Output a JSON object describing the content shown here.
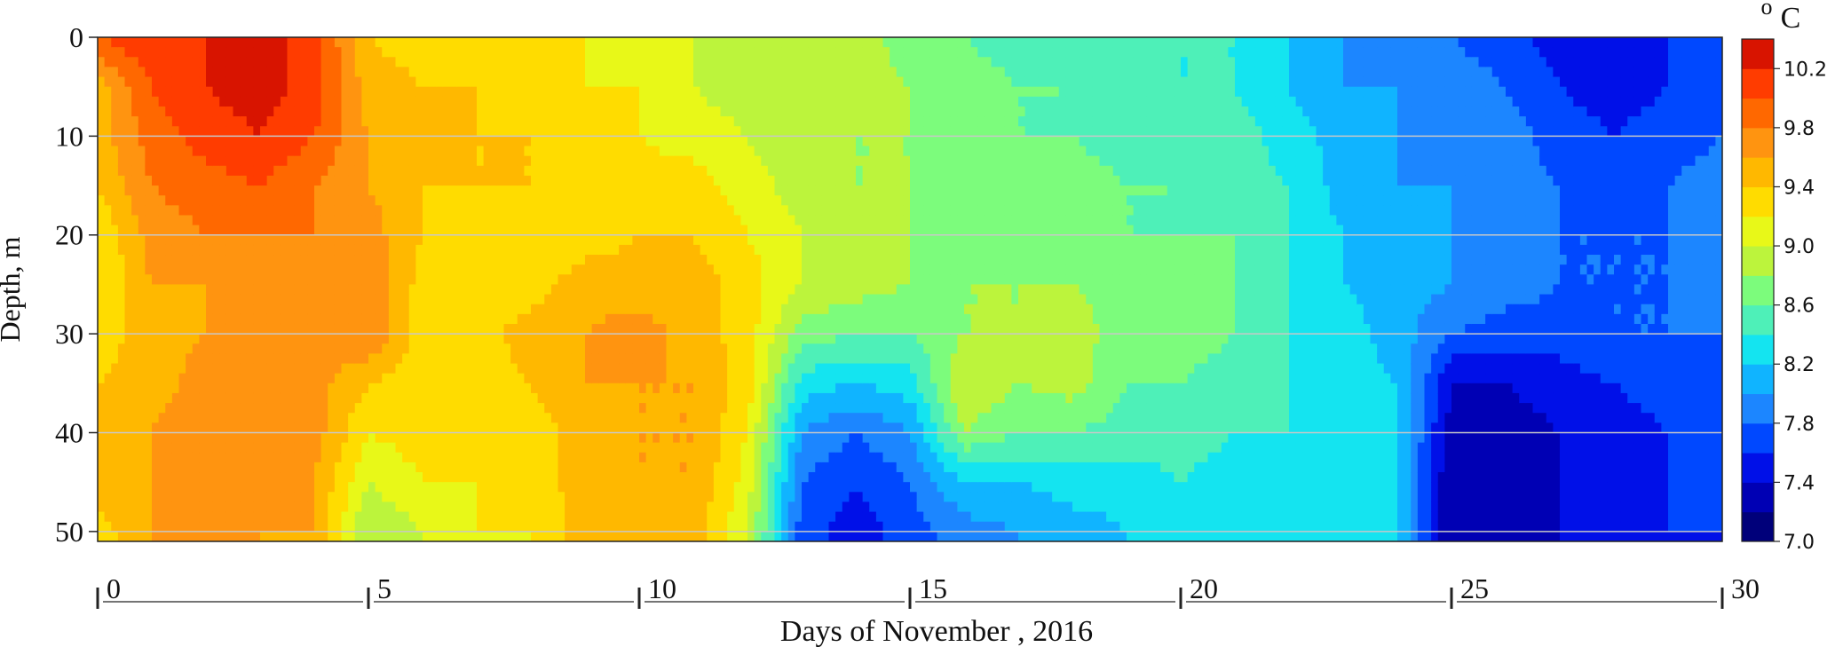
{
  "chart_data": {
    "type": "heatmap",
    "subtype": "filled-contour",
    "title": "",
    "xlabel": "Days of November , 2016",
    "ylabel": "Depth, m",
    "xlim": [
      0,
      30
    ],
    "ylim": [
      51,
      0
    ],
    "y_inverted": true,
    "x_ticks": [
      "0",
      "5",
      "10",
      "15",
      "20",
      "25",
      "30"
    ],
    "y_ticks": [
      "0",
      "10",
      "20",
      "30",
      "40",
      "50"
    ],
    "grid": "horizontal lines at depths 10, 20, 30, 40, 50",
    "colorbar": {
      "unit_sup": "o",
      "unit": "C",
      "min": 7.0,
      "max": 10.4,
      "step": 0.2,
      "tick_labels": [
        "7.0",
        "7.4",
        "7.8",
        "8.2",
        "8.6",
        "9.0",
        "9.4",
        "9.8",
        "10.2"
      ],
      "colors": [
        "#00007a",
        "#0000b4",
        "#0010e8",
        "#0048ff",
        "#1c86ff",
        "#10b4ff",
        "#14e4f0",
        "#4ef0b8",
        "#7cfc7c",
        "#bcf43c",
        "#e8f818",
        "#ffdc00",
        "#ffb800",
        "#ff9410",
        "#ff6800",
        "#ff3c00",
        "#d81400",
        "#a80000",
        "#7c0000"
      ]
    },
    "depth_levels_m": [
      0,
      5,
      10,
      15,
      20,
      25,
      30,
      35,
      40,
      45,
      50
    ],
    "days": [
      0,
      1,
      2,
      3,
      4,
      5,
      6,
      7,
      8,
      9,
      10,
      11,
      12,
      13,
      14,
      15,
      16,
      17,
      18,
      19,
      20,
      21,
      22,
      23,
      24,
      25,
      26,
      27,
      28,
      29,
      30
    ],
    "temperature_c": [
      [
        10.0,
        9.5,
        9.5,
        9.4,
        9.2,
        9.2,
        9.3,
        9.4,
        9.4,
        9.5,
        9.3
      ],
      [
        10.2,
        10.0,
        9.9,
        9.8,
        9.7,
        9.6,
        9.5,
        9.5,
        9.6,
        9.6,
        9.6
      ],
      [
        10.2,
        10.2,
        10.1,
        9.9,
        9.8,
        9.6,
        9.6,
        9.7,
        9.8,
        9.7,
        9.7
      ],
      [
        10.3,
        10.3,
        10.2,
        10.0,
        9.8,
        9.7,
        9.6,
        9.6,
        9.6,
        9.7,
        9.6
      ],
      [
        10.1,
        10.1,
        10.0,
        9.8,
        9.8,
        9.7,
        9.6,
        9.7,
        9.7,
        9.6,
        9.6
      ],
      [
        9.4,
        9.5,
        9.6,
        9.6,
        9.7,
        9.8,
        9.8,
        9.4,
        9.2,
        9.0,
        8.8
      ],
      [
        9.3,
        9.4,
        9.5,
        9.4,
        9.4,
        9.3,
        9.3,
        9.3,
        9.3,
        9.2,
        9.0
      ],
      [
        9.3,
        9.4,
        9.4,
        9.4,
        9.3,
        9.3,
        9.3,
        9.3,
        9.3,
        9.2,
        9.2
      ],
      [
        9.3,
        9.3,
        9.4,
        9.4,
        9.3,
        9.3,
        9.5,
        9.4,
        9.3,
        9.3,
        9.2
      ],
      [
        9.2,
        9.2,
        9.3,
        9.3,
        9.3,
        9.5,
        9.6,
        9.6,
        9.5,
        9.5,
        9.5
      ],
      [
        9.1,
        9.2,
        9.2,
        9.3,
        9.4,
        9.5,
        9.7,
        9.6,
        9.6,
        9.6,
        9.6
      ],
      [
        9.0,
        9.0,
        9.1,
        9.3,
        9.4,
        9.5,
        9.5,
        9.6,
        9.6,
        9.6,
        9.5
      ],
      [
        8.9,
        8.9,
        9.0,
        9.1,
        9.2,
        9.3,
        9.3,
        9.3,
        9.2,
        9.1,
        9.0
      ],
      [
        8.8,
        8.8,
        8.8,
        8.9,
        9.0,
        9.0,
        8.7,
        8.3,
        8.0,
        7.8,
        7.7
      ],
      [
        8.9,
        8.9,
        8.8,
        8.8,
        8.9,
        8.9,
        8.6,
        8.2,
        7.8,
        7.6,
        7.5
      ],
      [
        8.7,
        8.8,
        8.8,
        8.8,
        8.8,
        8.8,
        8.6,
        8.3,
        8.0,
        7.8,
        7.7
      ],
      [
        8.6,
        8.7,
        8.7,
        8.7,
        8.7,
        8.8,
        8.8,
        9.0,
        8.8,
        8.2,
        7.9
      ],
      [
        8.5,
        8.6,
        8.6,
        8.6,
        8.7,
        8.8,
        8.8,
        8.8,
        8.6,
        8.2,
        8.0
      ],
      [
        8.5,
        8.6,
        8.6,
        8.7,
        8.7,
        8.8,
        8.9,
        8.9,
        8.6,
        8.3,
        8.1
      ],
      [
        8.4,
        8.5,
        8.5,
        8.6,
        8.6,
        8.7,
        8.7,
        8.6,
        8.5,
        8.3,
        8.2
      ],
      [
        8.4,
        8.4,
        8.5,
        8.6,
        8.6,
        8.7,
        8.7,
        8.6,
        8.5,
        8.4,
        8.3
      ],
      [
        8.4,
        8.4,
        8.5,
        8.5,
        8.6,
        8.6,
        8.6,
        8.5,
        8.4,
        8.3,
        8.3
      ],
      [
        8.2,
        8.2,
        8.3,
        8.4,
        8.4,
        8.4,
        8.4,
        8.4,
        8.4,
        8.3,
        8.3
      ],
      [
        8.0,
        8.0,
        8.1,
        8.1,
        8.2,
        8.2,
        8.3,
        8.3,
        8.3,
        8.3,
        8.3
      ],
      [
        7.9,
        8.0,
        8.0,
        8.0,
        8.1,
        8.1,
        8.1,
        8.2,
        8.2,
        8.2,
        8.2
      ],
      [
        7.8,
        7.9,
        7.9,
        8.0,
        8.0,
        8.0,
        7.8,
        7.4,
        7.3,
        7.2,
        7.2
      ],
      [
        7.7,
        7.8,
        7.9,
        7.9,
        7.9,
        7.9,
        7.7,
        7.4,
        7.3,
        7.3,
        7.3
      ],
      [
        7.5,
        7.6,
        7.7,
        7.8,
        7.8,
        7.8,
        7.7,
        7.5,
        7.4,
        7.4,
        7.4
      ],
      [
        7.4,
        7.5,
        7.6,
        7.7,
        7.8,
        7.8,
        7.8,
        7.6,
        7.5,
        7.5,
        7.5
      ],
      [
        7.6,
        7.6,
        7.7,
        7.8,
        7.8,
        7.8,
        7.8,
        7.7,
        7.6,
        7.6,
        7.6
      ],
      [
        7.8,
        7.8,
        7.8,
        7.9,
        7.9,
        7.9,
        7.8,
        7.8,
        7.7,
        7.7,
        7.6
      ]
    ]
  }
}
